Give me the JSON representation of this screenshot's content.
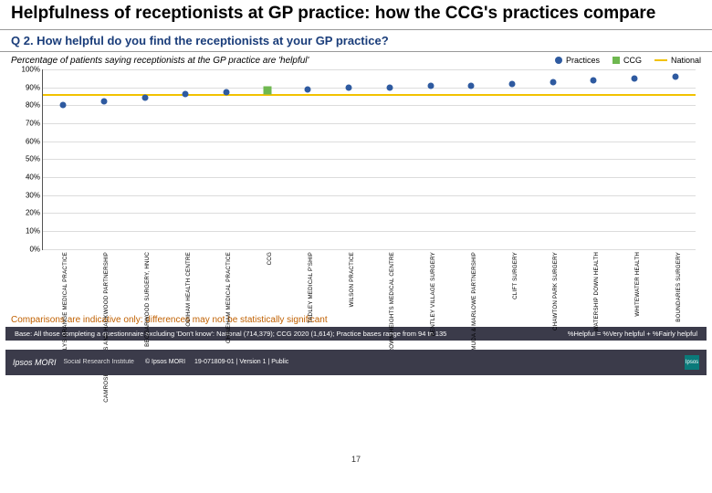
{
  "title": "Helpfulness of receptionists at GP practice: how the CCG's practices compare",
  "question": "Q 2. How helpful do you find the receptionists at your GP practice?",
  "subtitle": "Percentage of patients saying receptionists at the GP practice are 'helpful'",
  "legend": {
    "practices": {
      "label": "Practices",
      "color": "#2e5aa0"
    },
    "ccg": {
      "label": "CCG",
      "color": "#6fb850"
    },
    "national": {
      "label": "National",
      "color": "#f2c200"
    }
  },
  "chart": {
    "type": "scatter-category",
    "ylim": [
      0,
      100
    ],
    "ytick_step": 10,
    "y_suffix": "%",
    "grid_color": "#dcdcdc",
    "axis_color": "#555555",
    "background": "#ffffff",
    "marker_radius": 3.5,
    "marker_color": "#2e5aa0",
    "ccg_marker_color": "#6fb850",
    "national_line_color": "#f2c200",
    "ccg_line_color": "#6fb850",
    "national_value": 86,
    "ccg_value": 88,
    "points": [
      {
        "label": "BRAMBLYS GRANGE MEDICAL PRACTICE",
        "value": 80
      },
      {
        "label": "CAMROSE, GILLIES AND HACKWOOD PARTNERSHIP",
        "value": 82
      },
      {
        "label": "BEGGARWOOD SURGERY, HNUC",
        "value": 84
      },
      {
        "label": "ODIHAM HEALTH CENTRE",
        "value": 86
      },
      {
        "label": "CHINEHAM MEDICAL PRACTICE",
        "value": 87
      },
      {
        "label": "CCG",
        "value": 88,
        "is_ccg": true
      },
      {
        "label": "TADLEY MEDICAL P'SHIP",
        "value": 89
      },
      {
        "label": "WILSON PRACTICE",
        "value": 90
      },
      {
        "label": "CROWN HEIGHTS MEDICAL CENTRE",
        "value": 90
      },
      {
        "label": "BENTLEY VILLAGE SURGERY",
        "value": 91
      },
      {
        "label": "BERMUDA & MARLOWE PARTNERSHIP",
        "value": 91
      },
      {
        "label": "CLIFT SURGERY",
        "value": 92
      },
      {
        "label": "CHAWTON PARK SURGERY",
        "value": 93
      },
      {
        "label": "WATERSHIP DOWN HEALTH",
        "value": 94
      },
      {
        "label": "WHITEWATER HEALTH",
        "value": 95
      },
      {
        "label": "BOUNDARIES SURGERY",
        "value": 96
      }
    ]
  },
  "comparison_note": "Comparisons are indicative only: differences may not be statistically significant",
  "base_band_left": "Base: All those completing a questionnaire excluding 'Don't know': National (714,379); CCG 2020 (1,614); Practice bases range from 94 to 135",
  "base_band_right": "%Helpful = %Very helpful + %Fairly helpful",
  "page_number": "17",
  "footer": {
    "logo": "Ipsos MORI",
    "sri": "Social Research Institute",
    "copyright": "© Ipsos MORI",
    "ref": "19-071809-01 | Version 1 | Public",
    "square": "Ipsos"
  }
}
